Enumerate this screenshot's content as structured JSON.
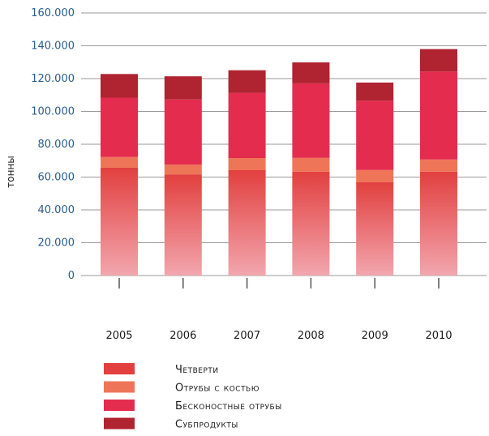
{
  "chart_data": {
    "type": "bar",
    "stacked": true,
    "categories": [
      "2005",
      "2006",
      "2007",
      "2008",
      "2009",
      "2010"
    ],
    "series": [
      {
        "name": "Четверти",
        "color": "#e2403f",
        "values": [
          65700,
          61500,
          64200,
          63300,
          56800,
          63300
        ]
      },
      {
        "name": "Отрубы с костью",
        "color": "#ef7558",
        "values": [
          6500,
          6100,
          7400,
          8400,
          7500,
          7400
        ]
      },
      {
        "name": "Бесконостные отрубы",
        "color": "#e42c4f",
        "values": [
          36200,
          39700,
          39700,
          45400,
          42200,
          53600
        ]
      },
      {
        "name": "Субпродукты",
        "color": "#b02330",
        "values": [
          14400,
          14100,
          13800,
          12800,
          11100,
          13700
        ]
      }
    ],
    "ylabel": "тонны",
    "ylim": [
      0,
      160000
    ],
    "yticks": [
      "0",
      "20.000",
      "40.000",
      "60.000",
      "80.000",
      "100.000",
      "120.000",
      "140.000",
      "160.000"
    ],
    "grid": true,
    "legend_position": "bottom"
  }
}
